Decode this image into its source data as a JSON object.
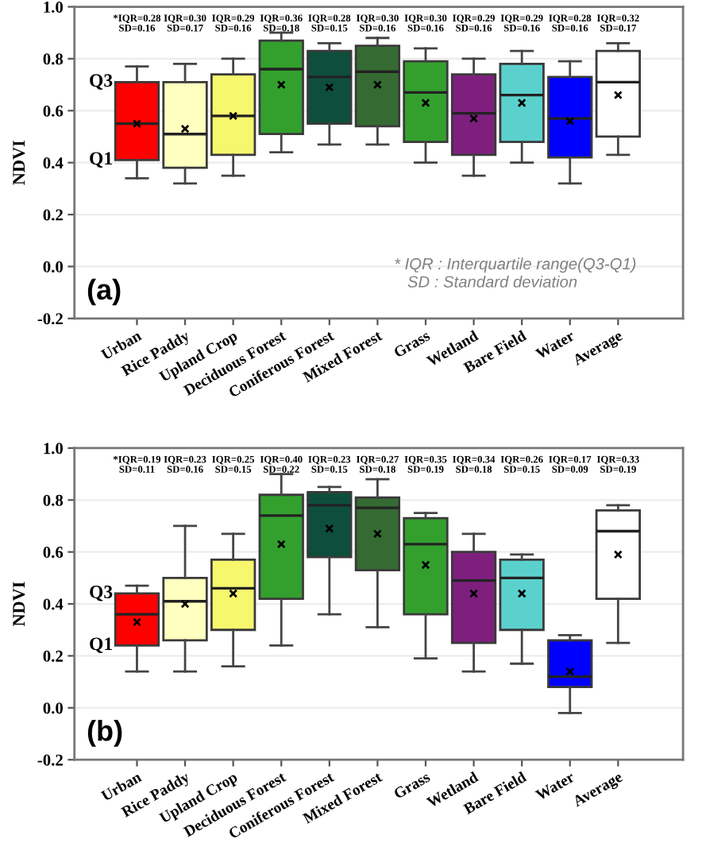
{
  "chart_data": [
    {
      "type": "box",
      "categories": [
        "Urban",
        "Rice Paddy",
        "Upland Crop",
        "Deciduous Forest",
        "Coniferous Forest",
        "Mixed Forest",
        "Grass",
        "Wetland",
        "Bare Field",
        "Water",
        "Average"
      ],
      "boxes": [
        {
          "low": 0.34,
          "q1": 0.41,
          "median": 0.55,
          "q3": 0.71,
          "high": 0.77,
          "mean": 0.55
        },
        {
          "low": 0.32,
          "q1": 0.38,
          "median": 0.51,
          "q3": 0.71,
          "high": 0.78,
          "mean": 0.53
        },
        {
          "low": 0.35,
          "q1": 0.43,
          "median": 0.58,
          "q3": 0.74,
          "high": 0.8,
          "mean": 0.58
        },
        {
          "low": 0.44,
          "q1": 0.51,
          "median": 0.76,
          "q3": 0.87,
          "high": 0.9,
          "mean": 0.7
        },
        {
          "low": 0.47,
          "q1": 0.55,
          "median": 0.73,
          "q3": 0.83,
          "high": 0.86,
          "mean": 0.69
        },
        {
          "low": 0.47,
          "q1": 0.54,
          "median": 0.75,
          "q3": 0.85,
          "high": 0.88,
          "mean": 0.7
        },
        {
          "low": 0.4,
          "q1": 0.48,
          "median": 0.67,
          "q3": 0.79,
          "high": 0.84,
          "mean": 0.63
        },
        {
          "low": 0.35,
          "q1": 0.43,
          "median": 0.59,
          "q3": 0.74,
          "high": 0.8,
          "mean": 0.57
        },
        {
          "low": 0.4,
          "q1": 0.48,
          "median": 0.66,
          "q3": 0.78,
          "high": 0.83,
          "mean": 0.63
        },
        {
          "low": 0.32,
          "q1": 0.42,
          "median": 0.57,
          "q3": 0.73,
          "high": 0.79,
          "mean": 0.56
        },
        {
          "low": 0.43,
          "q1": 0.5,
          "median": 0.71,
          "q3": 0.83,
          "high": 0.86,
          "mean": 0.66
        }
      ],
      "colors": [
        "#ff0000",
        "#ffffc0",
        "#f7f76e",
        "#33a02e",
        "#0d4f3c",
        "#356b33",
        "#33a02e",
        "#7e1f7e",
        "#5bd1cd",
        "#0000ff",
        "#ffffff"
      ],
      "value_labels": [
        "*IQR=0.28\nSD=0.16",
        "IQR=0.30\nSD=0.17",
        "IQR=0.29\nSD=0.16",
        "IQR=0.36\nSD=0.18",
        "IQR=0.28\nSD=0.15",
        "IQR=0.30\nSD=0.16",
        "IQR=0.30\nSD=0.16",
        "IQR=0.29\nSD=0.16",
        "IQR=0.29\nSD=0.16",
        "IQR=0.28\nSD=0.16",
        "IQR=0.32\nSD=0.17"
      ],
      "ylabel": "NDVI",
      "ylim": [
        -0.2,
        1.0
      ],
      "yticks": [
        {
          "value": -0.2,
          "label": "-0.2"
        },
        {
          "value": 0.0,
          "label": "0.0"
        },
        {
          "value": 0.2,
          "label": "0.2"
        },
        {
          "value": 0.4,
          "label": "0.4"
        },
        {
          "value": 0.6,
          "label": "0.6"
        },
        {
          "value": 0.8,
          "label": "0.8"
        },
        {
          "value": 1.0,
          "label": "1.0"
        }
      ],
      "grid": "y",
      "annotations": [
        "Q3",
        "Q1",
        "(a)",
        "* IQR : Interquartile range(Q3-Q1)\n   SD : Standard deviation"
      ]
    },
    {
      "type": "box",
      "categories": [
        "Urban",
        "Rice Paddy",
        "Upland Crop",
        "Deciduous Forest",
        "Coniferous Forest",
        "Mixed Forest",
        "Grass",
        "Wetland",
        "Bare Field",
        "Water",
        "Average"
      ],
      "boxes": [
        {
          "low": 0.14,
          "q1": 0.24,
          "median": 0.36,
          "q3": 0.44,
          "high": 0.47,
          "mean": 0.33
        },
        {
          "low": 0.14,
          "q1": 0.26,
          "median": 0.41,
          "q3": 0.5,
          "high": 0.7,
          "mean": 0.4
        },
        {
          "low": 0.16,
          "q1": 0.3,
          "median": 0.46,
          "q3": 0.57,
          "high": 0.67,
          "mean": 0.44
        },
        {
          "low": 0.24,
          "q1": 0.42,
          "median": 0.74,
          "q3": 0.82,
          "high": 0.9,
          "mean": 0.63
        },
        {
          "low": 0.36,
          "q1": 0.58,
          "median": 0.78,
          "q3": 0.83,
          "high": 0.85,
          "mean": 0.69
        },
        {
          "low": 0.31,
          "q1": 0.53,
          "median": 0.77,
          "q3": 0.81,
          "high": 0.88,
          "mean": 0.67
        },
        {
          "low": 0.19,
          "q1": 0.36,
          "median": 0.63,
          "q3": 0.73,
          "high": 0.75,
          "mean": 0.55
        },
        {
          "low": 0.14,
          "q1": 0.25,
          "median": 0.49,
          "q3": 0.6,
          "high": 0.67,
          "mean": 0.44
        },
        {
          "low": 0.17,
          "q1": 0.3,
          "median": 0.5,
          "q3": 0.57,
          "high": 0.59,
          "mean": 0.44
        },
        {
          "low": -0.02,
          "q1": 0.08,
          "median": 0.12,
          "q3": 0.26,
          "high": 0.28,
          "mean": 0.14
        },
        {
          "low": 0.25,
          "q1": 0.42,
          "median": 0.68,
          "q3": 0.76,
          "high": 0.78,
          "mean": 0.59
        }
      ],
      "colors": [
        "#ff0000",
        "#ffffc0",
        "#f7f76e",
        "#33a02e",
        "#0d4f3c",
        "#356b33",
        "#33a02e",
        "#7e1f7e",
        "#5bd1cd",
        "#0000ff",
        "#ffffff"
      ],
      "value_labels": [
        "*IQR=0.19\nSD=0.11",
        "IQR=0.23\nSD=0.16",
        "IQR=0.25\nSD=0.15",
        "IQR=0.40\nSD=0.22",
        "IQR=0.23\nSD=0.15",
        "IQR=0.27\nSD=0.18",
        "IQR=0.35\nSD=0.19",
        "IQR=0.34\nSD=0.18",
        "IQR=0.26\nSD=0.15",
        "IQR=0.17\nSD=0.09",
        "IQR=0.33\nSD=0.19"
      ],
      "ylabel": "NDVI",
      "ylim": [
        -0.2,
        1.0
      ],
      "yticks": [
        {
          "value": -0.2,
          "label": "-0.2"
        },
        {
          "value": 0.0,
          "label": "0.0"
        },
        {
          "value": 0.2,
          "label": "0.2"
        },
        {
          "value": 0.4,
          "label": "0.4"
        },
        {
          "value": 0.6,
          "label": "0.6"
        },
        {
          "value": 0.8,
          "label": "0.8"
        },
        {
          "value": 1.0,
          "label": "1.0"
        }
      ],
      "grid": "y",
      "annotations": [
        "Q3",
        "Q1",
        "(b)"
      ]
    }
  ]
}
